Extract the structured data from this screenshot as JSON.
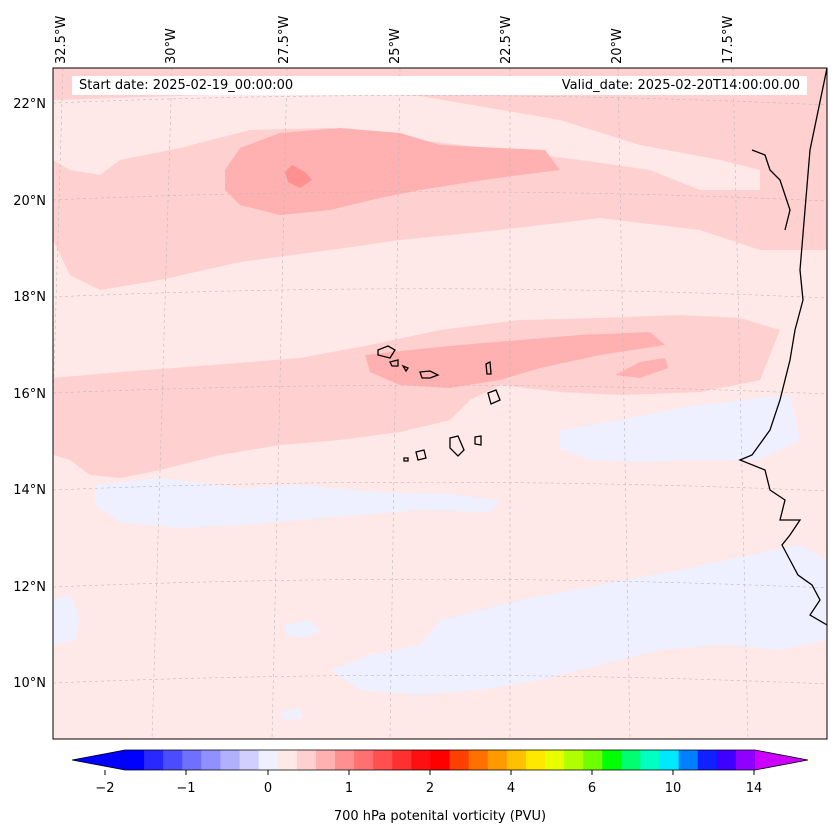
{
  "map": {
    "start_date": "Start date: 2025-02-19_00:00:00",
    "valid_date": "Valid_date: 2025-02-20T14:00:00.00",
    "lon_labels": [
      "32.5°W",
      "30°W",
      "27.5°W",
      "25°W",
      "22.5°W",
      "20°W",
      "17.5°W"
    ],
    "lat_labels": [
      "22°N",
      "20°N",
      "18°N",
      "16°N",
      "14°N",
      "12°N",
      "10°N"
    ],
    "colors": {
      "background": "#ffe8e8",
      "light_pink": "#ffd0d0",
      "medium_pink": "#ffb0b0",
      "dark_pink": "#ff9090",
      "light_blue": "#eef0ff",
      "coastline": "#000000",
      "grid": "#bbbbbb"
    }
  },
  "colorbar": {
    "label": "700 hPa potenital vorticity (PVU)",
    "ticks": [
      "−2",
      "−1",
      "0",
      "1",
      "2",
      "4",
      "6",
      "10",
      "14"
    ],
    "colors": [
      "#0000ff",
      "#2828ff",
      "#4c4cff",
      "#7070ff",
      "#9090ff",
      "#b0b0ff",
      "#d0d0ff",
      "#eef0ff",
      "#ffe8e8",
      "#ffd0d0",
      "#ffb0b0",
      "#ff9090",
      "#ff7070",
      "#ff5050",
      "#ff3030",
      "#ff1010",
      "#ff0000",
      "#ff4000",
      "#ff7000",
      "#ff9a00",
      "#ffc000",
      "#ffe800",
      "#e8ff00",
      "#b0ff00",
      "#70ff00",
      "#00ff00",
      "#00ff70",
      "#00ffc0",
      "#00e8ff",
      "#0080ff",
      "#1020ff",
      "#4000ff",
      "#9000ff"
    ],
    "under_color": "#0000ff",
    "over_color": "#cc00ff"
  }
}
